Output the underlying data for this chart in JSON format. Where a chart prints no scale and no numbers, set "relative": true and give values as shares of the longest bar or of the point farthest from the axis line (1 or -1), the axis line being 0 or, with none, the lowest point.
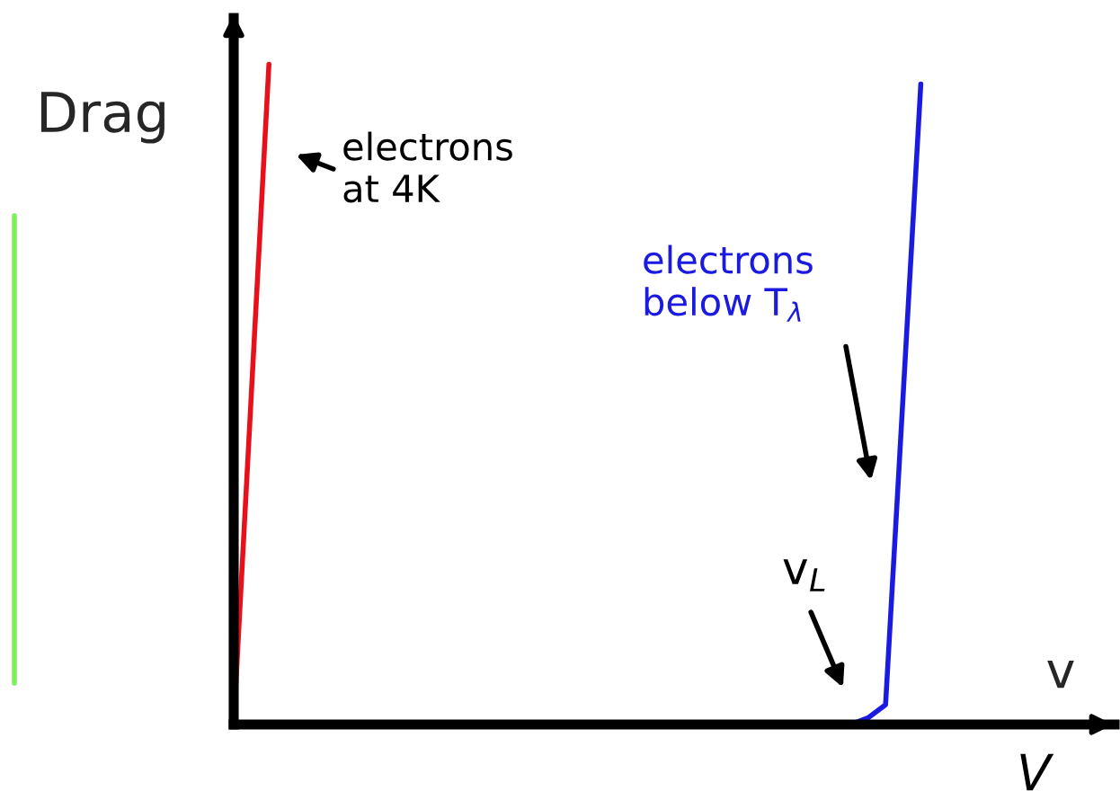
{
  "chart_data": {
    "type": "line",
    "relative": true,
    "ylabel": "Drag",
    "xlabel": "v",
    "categories": [
      null,
      null,
      null,
      null,
      null,
      null,
      null,
      null,
      null,
      null,
      null,
      null,
      null,
      null,
      null,
      null,
      null,
      null,
      null,
      null,
      null,
      null,
      null,
      null,
      null,
      null,
      null,
      null,
      null,
      null,
      null,
      null,
      null,
      null,
      null,
      null,
      null,
      null,
      null,
      null,
      null,
      null,
      null,
      null,
      null,
      null,
      null,
      null,
      null,
      null,
      null
    ],
    "series": [
      {
        "color": "#e8101a",
        "values": [
          0,
          0.5,
          1,
          null,
          null,
          null,
          null,
          null,
          null,
          null,
          null,
          null,
          null,
          null,
          null,
          null,
          null,
          null,
          null,
          null,
          null,
          null,
          null,
          null,
          null,
          null,
          null,
          null,
          null,
          null,
          null,
          null,
          null,
          null,
          null,
          null,
          null,
          null,
          null,
          null,
          null,
          null,
          null,
          null,
          null,
          null,
          null,
          null,
          null,
          null,
          null
        ]
      },
      {
        "color": "#1a1ae0",
        "values": [
          null,
          null,
          null,
          null,
          null,
          null,
          null,
          null,
          null,
          null,
          null,
          null,
          null,
          null,
          null,
          null,
          null,
          null,
          null,
          null,
          null,
          null,
          null,
          null,
          null,
          null,
          null,
          null,
          null,
          null,
          null,
          null,
          null,
          null,
          null,
          0,
          0.01,
          0.03,
          0.5,
          0.97,
          null,
          null,
          null,
          null,
          null,
          null,
          null,
          null,
          null,
          null,
          null
        ]
      }
    ],
    "annotations": [
      "electrons\nat 4K",
      "electrons\nbelow T$_{λ}$",
      "v$_{L}$",
      "V"
    ]
  }
}
